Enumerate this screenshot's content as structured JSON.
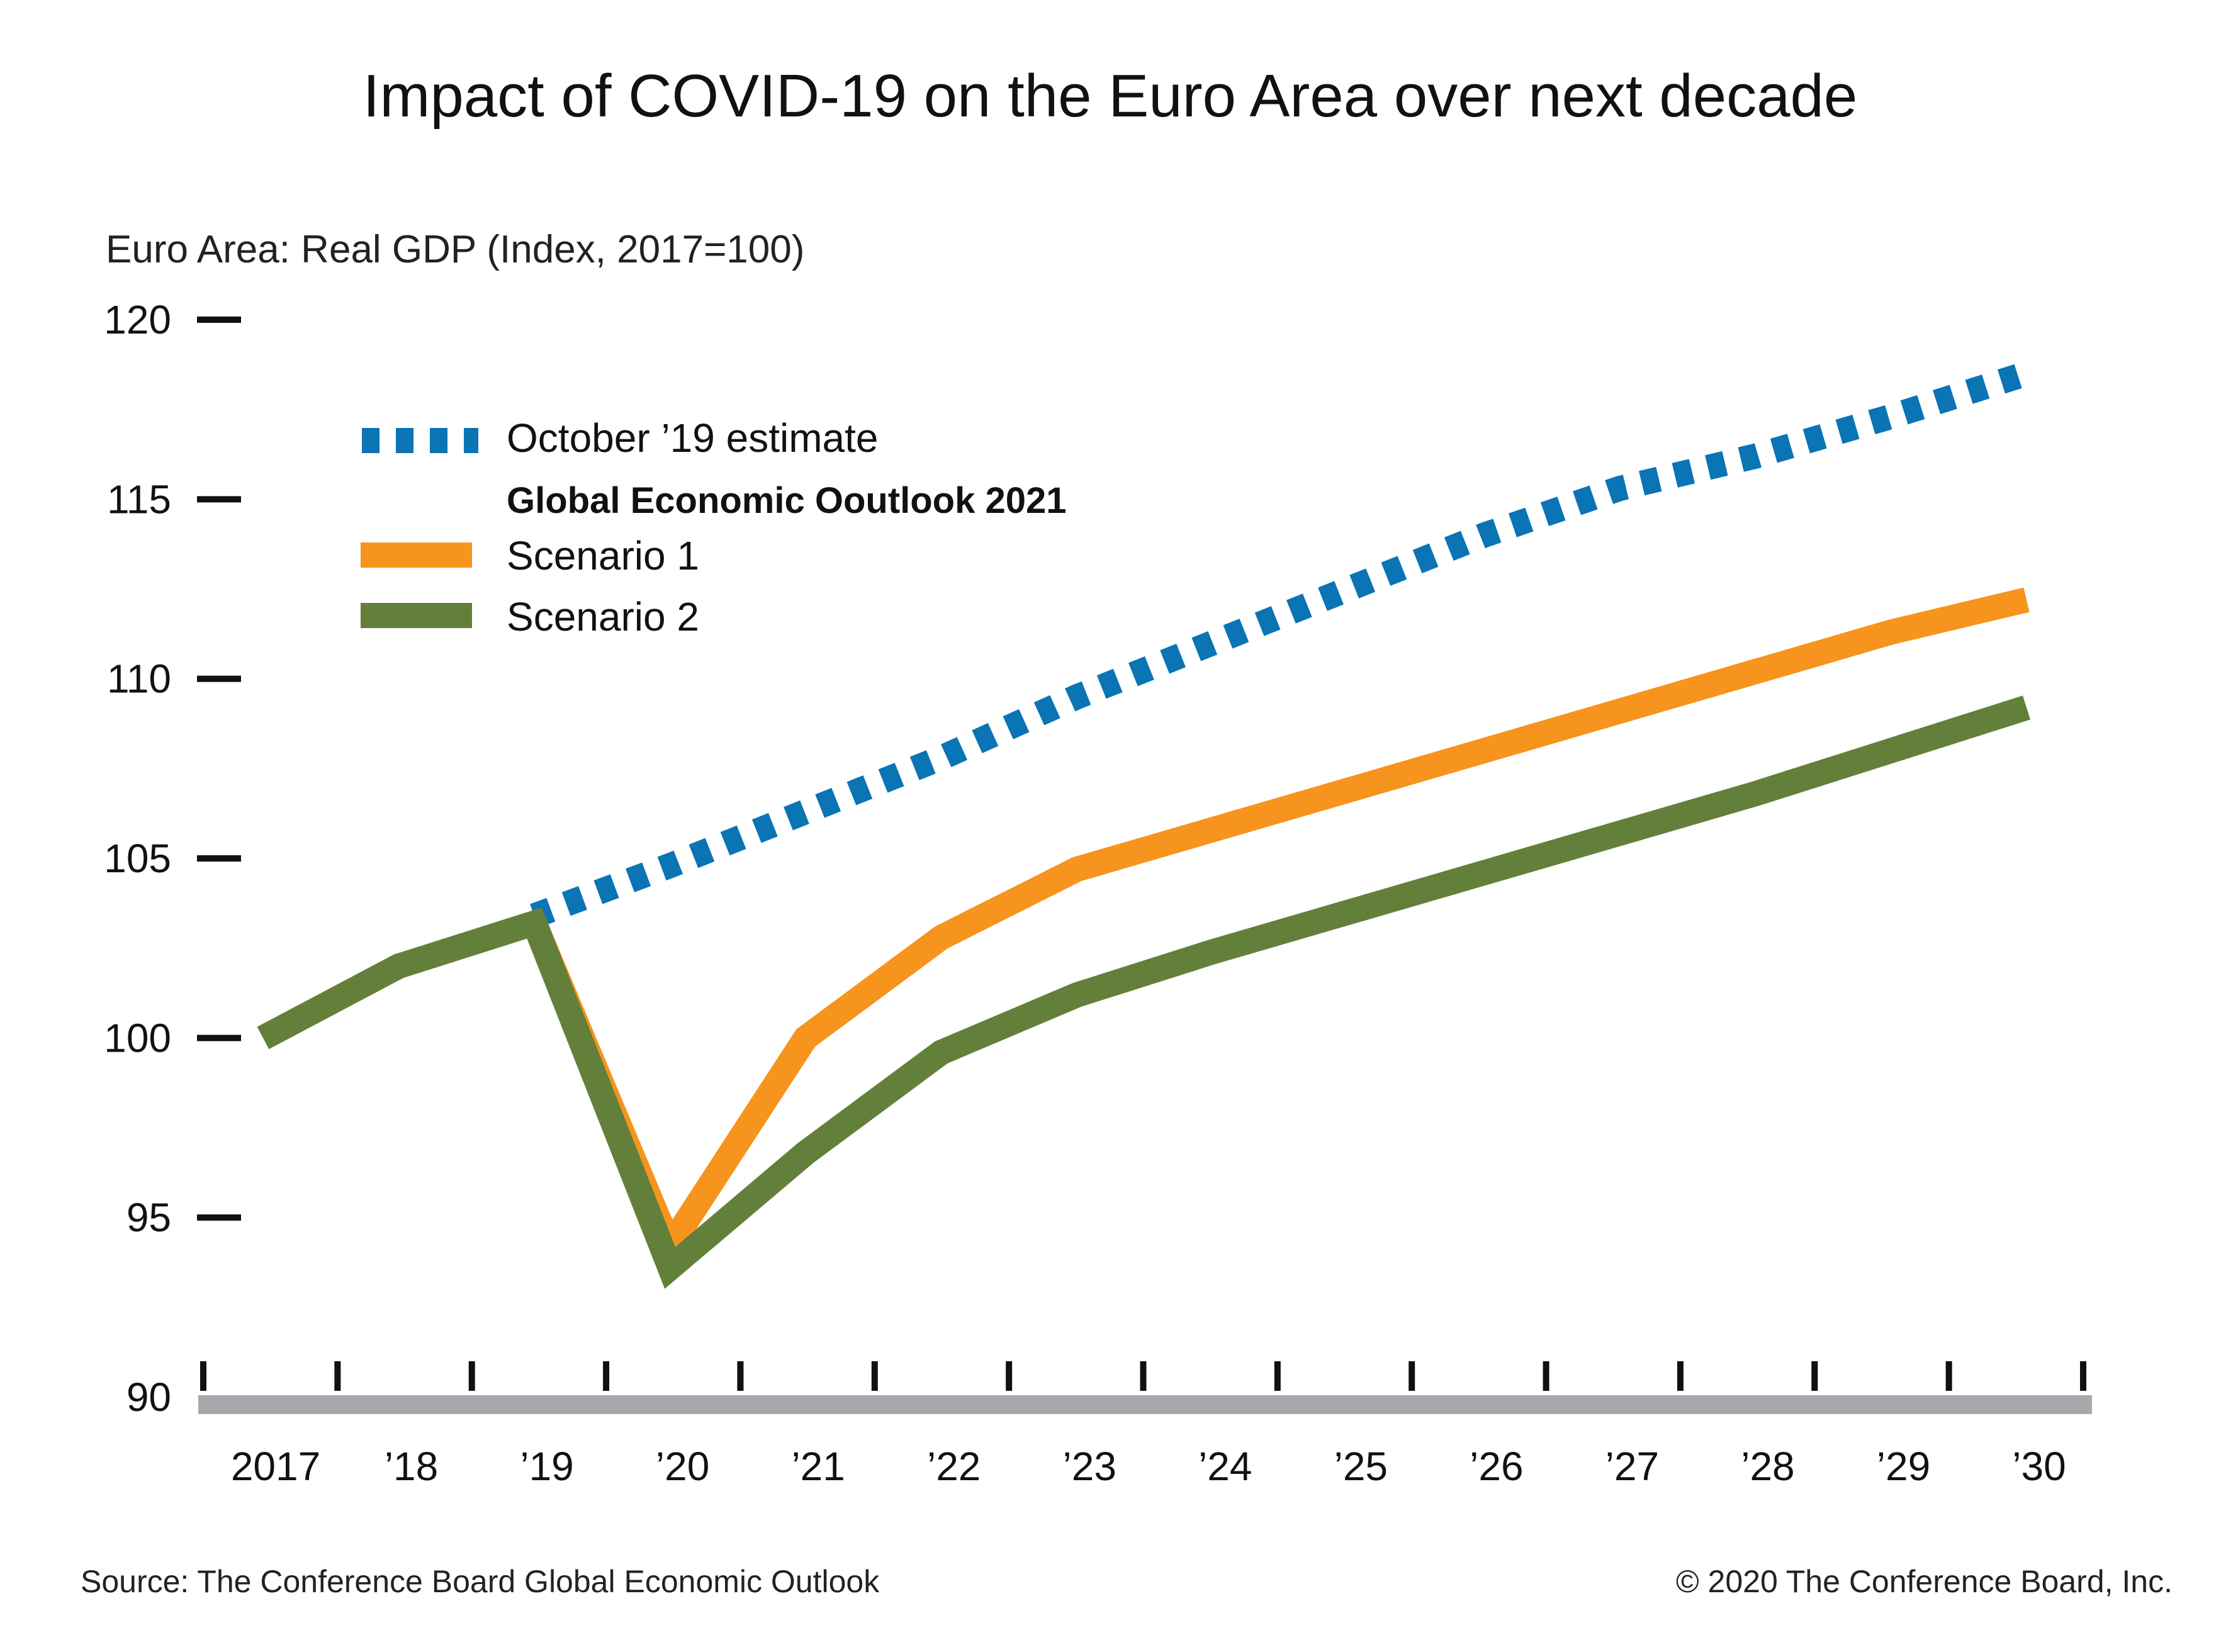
{
  "chart_data": {
    "type": "line",
    "title": "Impact of COVID-19 on the Euro Area over next decade",
    "subtitle": "Euro Area: Real GDP (Index, 2017=100)",
    "xlabel": "",
    "ylabel": "Euro Area: Real GDP (Index, 2017=100)",
    "ylim": [
      90,
      120
    ],
    "yticks": [
      90,
      95,
      100,
      105,
      110,
      115,
      120
    ],
    "categories": [
      "2017",
      "’18",
      "’19",
      "’20",
      "’21",
      "’22",
      "’23",
      "’24",
      "’25",
      "’26",
      "’27",
      "’28",
      "’29",
      "’30"
    ],
    "x": [
      2017,
      2018,
      2019,
      2020,
      2021,
      2022,
      2023,
      2024,
      2025,
      2026,
      2027,
      2028,
      2029,
      2030
    ],
    "legend_group_heading": "Global Economic Ooutlook 2021",
    "legend_position": "top-left",
    "series": [
      {
        "name": "October ’19 estimate",
        "style": "dotted",
        "color": "#0a74b5",
        "x": [
          2019,
          2020,
          2021,
          2022,
          2023,
          2024,
          2025,
          2026,
          2027,
          2028,
          2029,
          2030
        ],
        "values": [
          103.4,
          104.8,
          106.3,
          107.8,
          109.5,
          111.0,
          112.5,
          114.0,
          115.3,
          116.2,
          117.3,
          118.5
        ]
      },
      {
        "name": "Scenario 1",
        "style": "solid",
        "color": "#f7941d",
        "x": [
          2017,
          2018,
          2019,
          2020,
          2021,
          2022,
          2023,
          2024,
          2025,
          2026,
          2027,
          2028,
          2029,
          2030
        ],
        "values": [
          100.0,
          102.0,
          103.2,
          94.2,
          100.0,
          102.8,
          104.7,
          105.8,
          106.9,
          108.0,
          109.1,
          110.2,
          111.3,
          112.2
        ]
      },
      {
        "name": "Scenario 2",
        "style": "solid",
        "color": "#62803a",
        "x": [
          2017,
          2018,
          2019,
          2020,
          2021,
          2022,
          2023,
          2024,
          2025,
          2026,
          2027,
          2028,
          2029,
          2030
        ],
        "values": [
          100.0,
          102.0,
          103.2,
          93.6,
          96.8,
          99.6,
          101.2,
          102.4,
          103.5,
          104.6,
          105.7,
          106.8,
          108.0,
          109.2
        ]
      }
    ]
  },
  "footer": {
    "source": "Source: The Conference Board Global Economic Outlook",
    "copyright": "© 2020 The Conference Board, Inc."
  },
  "colors": {
    "axis_baseline": "#a7a9ac",
    "tick": "#111111"
  }
}
